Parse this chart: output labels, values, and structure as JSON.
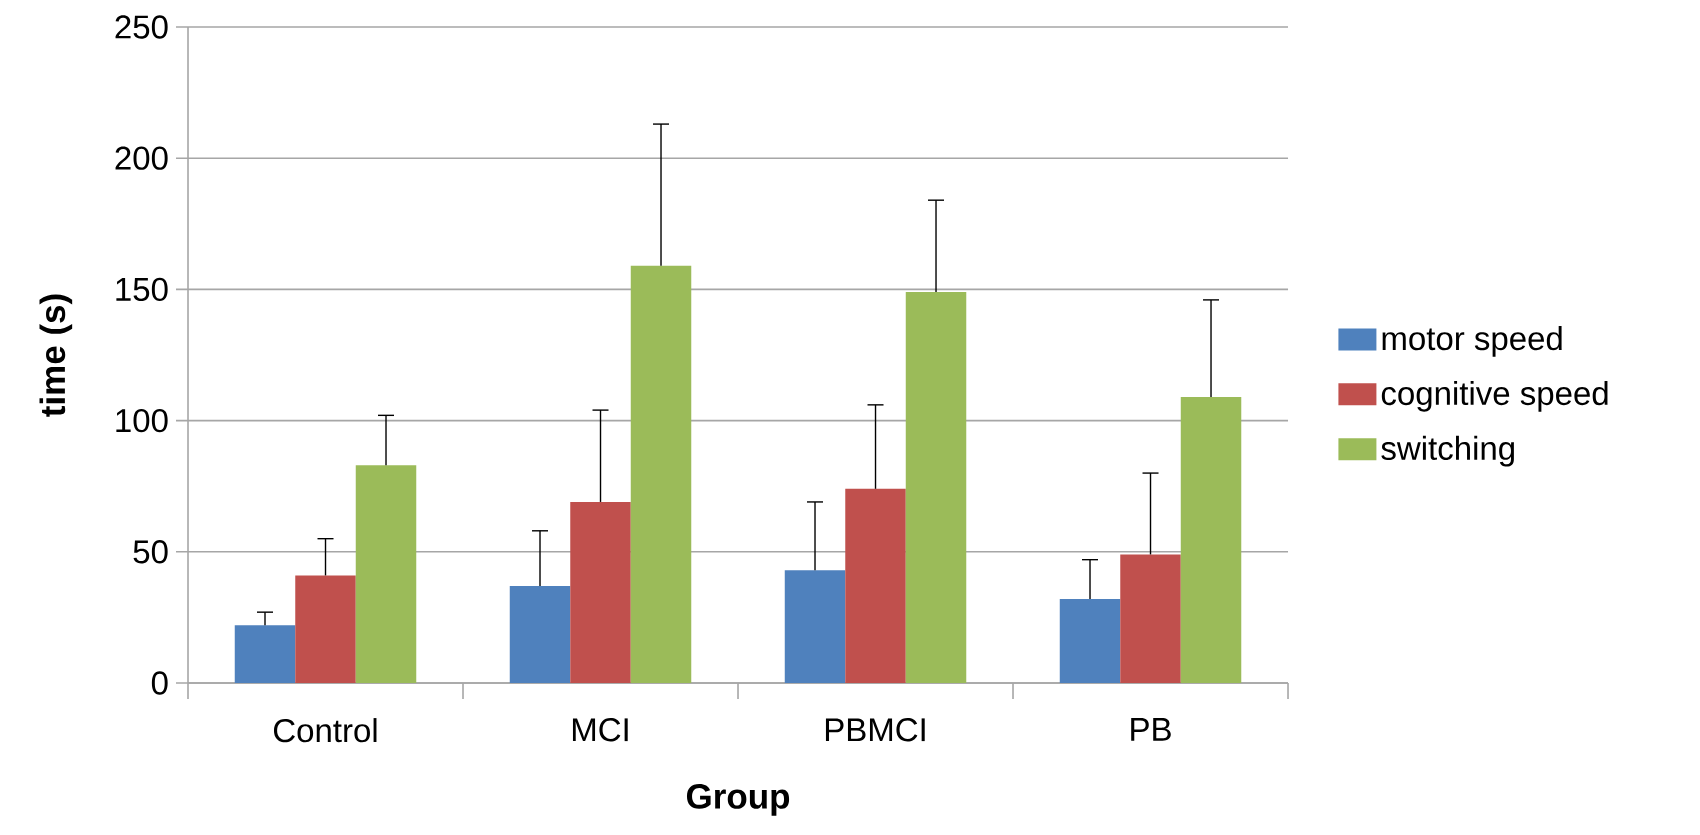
{
  "chart_data": {
    "type": "bar",
    "xlabel": "Group",
    "ylabel": "time (s)",
    "categories": [
      "Control",
      "MCI",
      "PBMCI",
      "PB"
    ],
    "series": [
      {
        "name": "motor speed",
        "color": "#4f81bd",
        "values": [
          22,
          37,
          43,
          32
        ],
        "errors": [
          [
            22,
            27
          ],
          [
            37,
            58
          ],
          [
            43,
            69
          ],
          [
            32,
            47
          ]
        ]
      },
      {
        "name": "cognitive speed",
        "color": "#c0504d",
        "values": [
          41,
          69,
          74,
          49
        ],
        "errors": [
          [
            41,
            55
          ],
          [
            69,
            104
          ],
          [
            74,
            106
          ],
          [
            49,
            80
          ]
        ]
      },
      {
        "name": "switching",
        "color": "#9bbb59",
        "values": [
          83,
          159,
          149,
          109
        ],
        "errors": [
          [
            83,
            102
          ],
          [
            159,
            213
          ],
          [
            149,
            184
          ],
          [
            109,
            146
          ]
        ]
      }
    ],
    "ylim": [
      0,
      250
    ],
    "yticks": [
      0,
      50,
      100,
      150,
      200,
      250
    ],
    "grid": "y",
    "legend": "right"
  }
}
